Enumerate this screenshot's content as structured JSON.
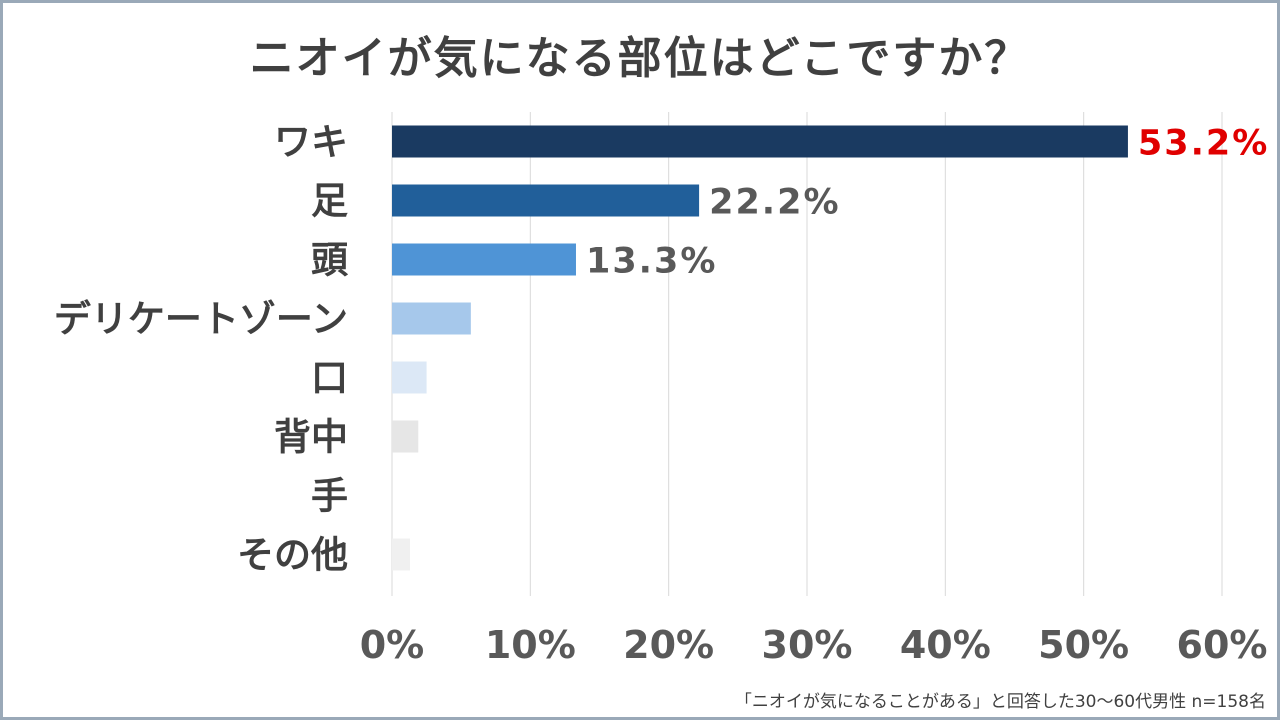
{
  "chart_data": {
    "type": "bar",
    "orientation": "horizontal",
    "title": "ニオイが気になる部位はどこですか？",
    "categories": [
      "ワキ",
      "足",
      "頭",
      "デリケートゾーン",
      "口",
      "背中",
      "手",
      "その他"
    ],
    "values": [
      53.2,
      22.2,
      13.3,
      5.7,
      2.5,
      1.9,
      0,
      1.3
    ],
    "data_labels": [
      "53.2%",
      "22.2%",
      "13.3%",
      "",
      "",
      "",
      "",
      ""
    ],
    "label_colors": [
      "#e00000",
      "#595959",
      "#595959",
      "",
      "",
      "",
      "",
      ""
    ],
    "bar_colors": [
      "#1a3a61",
      "#215f9a",
      "#4f94d6",
      "#a6c8eb",
      "#dce8f6",
      "#e6e6e6",
      "#f0f0f0",
      "#f0f0f0"
    ],
    "x_ticks": [
      "0%",
      "10%",
      "20%",
      "30%",
      "40%",
      "50%",
      "60%"
    ],
    "xlim": [
      0,
      60
    ],
    "grid": true
  },
  "footnote": "「ニオイが気になることがある」と回答した30〜60代男性 n=158名",
  "colors": {
    "frame_border": "#9aa9b8",
    "text": "#404040",
    "grid": "#d9d9d9"
  }
}
